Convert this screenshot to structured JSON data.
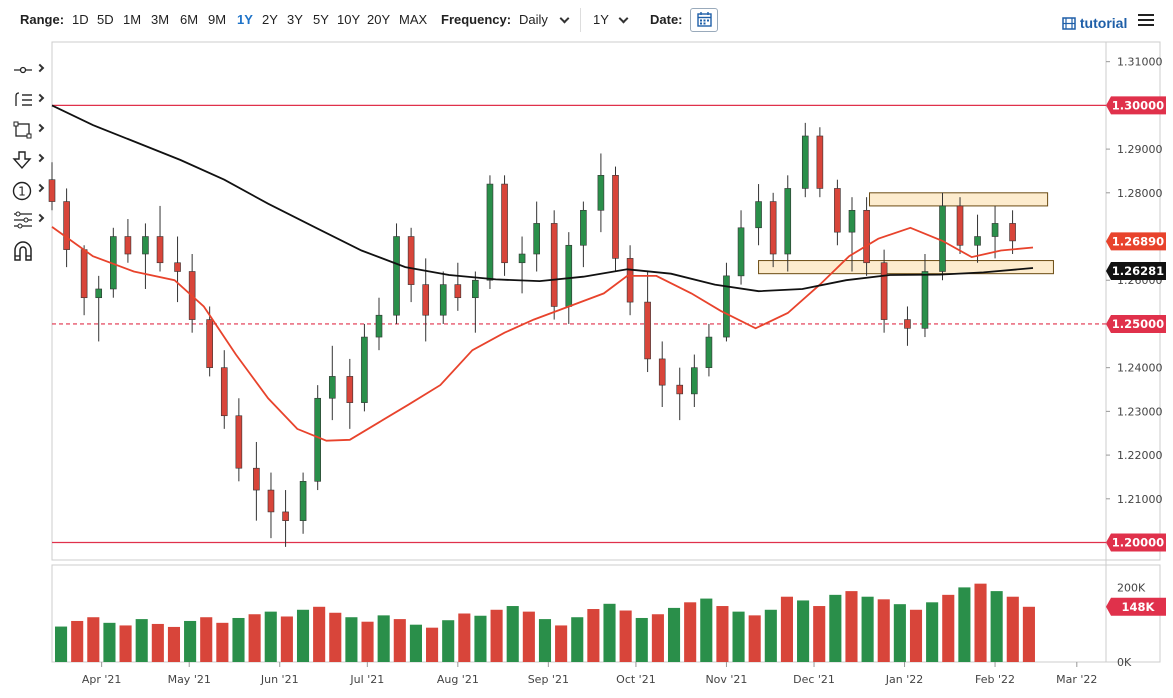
{
  "toolbar": {
    "range_label": "Range:",
    "ranges": [
      "1D",
      "5D",
      "1M",
      "3M",
      "6M",
      "9M",
      "1Y",
      "2Y",
      "3Y",
      "5Y",
      "10Y",
      "20Y",
      "MAX"
    ],
    "active_range": "1Y",
    "frequency_label": "Frequency:",
    "frequency_value": "Daily",
    "period_value": "1Y",
    "date_label": "Date:",
    "tutorial_label": "tutorial"
  },
  "tools": [
    "crosshair-tool",
    "indicator-list-tool",
    "shape-tool",
    "arrow-down-tool",
    "counter-tool",
    "drawing-layers-tool",
    "magnet-tool"
  ],
  "colors": {
    "up": "#2a8f4a",
    "down": "#d8453a",
    "sma_fast": "#e8432c",
    "sma_slow": "#111111",
    "level_line": "#e0314b",
    "zone_fill": "#fde9c5",
    "zone_stroke": "#6b4b12",
    "label_red": "#e0314b"
  },
  "chart_data": {
    "type": "candlestick",
    "x_ticks": [
      "Apr '21",
      "May '21",
      "Jun '21",
      "Jul '21",
      "Aug '21",
      "Sep '21",
      "Oct '21",
      "Nov '21",
      "Dec '21",
      "Jan '22",
      "Feb '22",
      "Mar '22"
    ],
    "y_ticks": [
      "1.31000",
      "1.29000",
      "1.28000",
      "1.26000",
      "1.24000",
      "1.23000",
      "1.22000",
      "1.21000"
    ],
    "ylim": [
      1.196,
      1.3145
    ],
    "horizontal_levels": [
      {
        "value": 1.3,
        "label": "1.30000",
        "style": "solid"
      },
      {
        "value": 1.25,
        "label": "1.25000",
        "style": "dashed"
      },
      {
        "value": 1.2,
        "label": "1.20000",
        "style": "solid"
      }
    ],
    "last_price": {
      "value": 1.2689,
      "label": "1.26890"
    },
    "sma_slow_last": {
      "value": 1.26281,
      "label": "1.26281"
    },
    "zones": [
      {
        "from_date": "2021-12-20",
        "to_date": "2022-02-19",
        "low": 1.277,
        "high": 1.28
      },
      {
        "from_date": "2021-11-12",
        "to_date": "2022-02-21",
        "low": 1.2615,
        "high": 1.2645
      }
    ],
    "sma_fast": [
      [
        "2021-03-15",
        1.2722
      ],
      [
        "2021-03-29",
        1.2655
      ],
      [
        "2021-04-12",
        1.262
      ],
      [
        "2021-04-26",
        1.26
      ],
      [
        "2021-05-06",
        1.254
      ],
      [
        "2021-05-17",
        1.243
      ],
      [
        "2021-05-28",
        1.233
      ],
      [
        "2021-06-07",
        1.226
      ],
      [
        "2021-06-17",
        1.2233
      ],
      [
        "2021-06-25",
        1.2235
      ],
      [
        "2021-07-05",
        1.2275
      ],
      [
        "2021-07-15",
        1.2315
      ],
      [
        "2021-07-26",
        1.236
      ],
      [
        "2021-08-06",
        1.244
      ],
      [
        "2021-08-17",
        1.248
      ],
      [
        "2021-08-27",
        1.251
      ],
      [
        "2021-09-08",
        1.254
      ],
      [
        "2021-09-20",
        1.257
      ],
      [
        "2021-09-28",
        1.261
      ],
      [
        "2021-10-08",
        1.261
      ],
      [
        "2021-10-20",
        1.257
      ],
      [
        "2021-10-30",
        1.253
      ],
      [
        "2021-11-11",
        1.249
      ],
      [
        "2021-11-22",
        1.2525
      ],
      [
        "2021-12-03",
        1.259
      ],
      [
        "2021-12-13",
        1.2655
      ],
      [
        "2021-12-23",
        1.2695
      ],
      [
        "2022-01-03",
        1.272
      ],
      [
        "2022-01-14",
        1.269
      ],
      [
        "2022-01-24",
        1.2653
      ],
      [
        "2022-02-03",
        1.2668
      ],
      [
        "2022-02-14",
        1.2675
      ]
    ],
    "sma_slow": [
      [
        "2021-03-15",
        1.3
      ],
      [
        "2021-03-29",
        1.2955
      ],
      [
        "2021-04-13",
        1.2915
      ],
      [
        "2021-04-28",
        1.2875
      ],
      [
        "2021-05-13",
        1.283
      ],
      [
        "2021-05-28",
        1.2775
      ],
      [
        "2021-06-14",
        1.2718
      ],
      [
        "2021-06-29",
        1.2668
      ],
      [
        "2021-07-14",
        1.263
      ],
      [
        "2021-07-29",
        1.2612
      ],
      [
        "2021-08-14",
        1.2602
      ],
      [
        "2021-08-29",
        1.2598
      ],
      [
        "2021-09-13",
        1.2608
      ],
      [
        "2021-09-28",
        1.2625
      ],
      [
        "2021-10-13",
        1.2615
      ],
      [
        "2021-10-28",
        1.259
      ],
      [
        "2021-11-12",
        1.2575
      ],
      [
        "2021-11-27",
        1.258
      ],
      [
        "2021-12-12",
        1.26
      ],
      [
        "2021-12-27",
        1.2612
      ],
      [
        "2022-01-13",
        1.2613
      ],
      [
        "2022-01-28",
        1.2618
      ],
      [
        "2022-02-14",
        1.2628
      ]
    ],
    "candles": [
      [
        "2021-03-15",
        1.283,
        1.287,
        1.276,
        1.278
      ],
      [
        "2021-03-20",
        1.278,
        1.281,
        1.263,
        1.267
      ],
      [
        "2021-03-26",
        1.267,
        1.268,
        1.252,
        1.256
      ],
      [
        "2021-03-31",
        1.256,
        1.261,
        1.246,
        1.258
      ],
      [
        "2021-04-05",
        1.258,
        1.272,
        1.256,
        1.27
      ],
      [
        "2021-04-10",
        1.27,
        1.274,
        1.264,
        1.266
      ],
      [
        "2021-04-16",
        1.266,
        1.273,
        1.258,
        1.27
      ],
      [
        "2021-04-21",
        1.27,
        1.277,
        1.262,
        1.264
      ],
      [
        "2021-04-27",
        1.264,
        1.27,
        1.255,
        1.262
      ],
      [
        "2021-05-02",
        1.262,
        1.266,
        1.248,
        1.251
      ],
      [
        "2021-05-08",
        1.251,
        1.254,
        1.238,
        1.24
      ],
      [
        "2021-05-13",
        1.24,
        1.244,
        1.226,
        1.229
      ],
      [
        "2021-05-18",
        1.229,
        1.233,
        1.214,
        1.217
      ],
      [
        "2021-05-24",
        1.217,
        1.223,
        1.205,
        1.212
      ],
      [
        "2021-05-29",
        1.212,
        1.216,
        1.201,
        1.207
      ],
      [
        "2021-06-03",
        1.207,
        1.212,
        1.199,
        1.205
      ],
      [
        "2021-06-09",
        1.205,
        1.216,
        1.202,
        1.214
      ],
      [
        "2021-06-14",
        1.214,
        1.236,
        1.212,
        1.233
      ],
      [
        "2021-06-19",
        1.233,
        1.245,
        1.228,
        1.238
      ],
      [
        "2021-06-25",
        1.238,
        1.242,
        1.226,
        1.232
      ],
      [
        "2021-06-30",
        1.232,
        1.25,
        1.23,
        1.247
      ],
      [
        "2021-07-05",
        1.247,
        1.256,
        1.244,
        1.252
      ],
      [
        "2021-07-11",
        1.252,
        1.273,
        1.25,
        1.27
      ],
      [
        "2021-07-16",
        1.27,
        1.272,
        1.255,
        1.259
      ],
      [
        "2021-07-21",
        1.259,
        1.265,
        1.246,
        1.252
      ],
      [
        "2021-07-27",
        1.252,
        1.262,
        1.25,
        1.259
      ],
      [
        "2021-08-01",
        1.259,
        1.264,
        1.253,
        1.256
      ],
      [
        "2021-08-07",
        1.256,
        1.262,
        1.248,
        1.26
      ],
      [
        "2021-08-12",
        1.26,
        1.284,
        1.258,
        1.282
      ],
      [
        "2021-08-17",
        1.282,
        1.284,
        1.261,
        1.264
      ],
      [
        "2021-08-23",
        1.264,
        1.27,
        1.257,
        1.266
      ],
      [
        "2021-08-28",
        1.266,
        1.278,
        1.262,
        1.273
      ],
      [
        "2021-09-03",
        1.273,
        1.276,
        1.251,
        1.254
      ],
      [
        "2021-09-08",
        1.254,
        1.271,
        1.25,
        1.268
      ],
      [
        "2021-09-13",
        1.268,
        1.278,
        1.263,
        1.276
      ],
      [
        "2021-09-19",
        1.276,
        1.289,
        1.271,
        1.284
      ],
      [
        "2021-09-24",
        1.284,
        1.286,
        1.262,
        1.265
      ],
      [
        "2021-09-29",
        1.265,
        1.268,
        1.252,
        1.255
      ],
      [
        "2021-10-05",
        1.255,
        1.262,
        1.239,
        1.242
      ],
      [
        "2021-10-10",
        1.242,
        1.246,
        1.231,
        1.236
      ],
      [
        "2021-10-16",
        1.236,
        1.24,
        1.228,
        1.234
      ],
      [
        "2021-10-21",
        1.234,
        1.243,
        1.231,
        1.24
      ],
      [
        "2021-10-26",
        1.24,
        1.25,
        1.238,
        1.247
      ],
      [
        "2021-11-01",
        1.247,
        1.264,
        1.246,
        1.261
      ],
      [
        "2021-11-06",
        1.261,
        1.276,
        1.259,
        1.272
      ],
      [
        "2021-11-12",
        1.272,
        1.282,
        1.268,
        1.278
      ],
      [
        "2021-11-17",
        1.278,
        1.28,
        1.263,
        1.266
      ],
      [
        "2021-11-22",
        1.266,
        1.284,
        1.262,
        1.281
      ],
      [
        "2021-11-28",
        1.281,
        1.296,
        1.279,
        1.293
      ],
      [
        "2021-12-03",
        1.293,
        1.295,
        1.279,
        1.281
      ],
      [
        "2021-12-09",
        1.281,
        1.283,
        1.268,
        1.271
      ],
      [
        "2021-12-14",
        1.271,
        1.279,
        1.262,
        1.276
      ],
      [
        "2021-12-19",
        1.276,
        1.279,
        1.261,
        1.264
      ],
      [
        "2021-12-25",
        1.264,
        1.267,
        1.248,
        1.251
      ],
      [
        "2022-01-02",
        1.251,
        1.254,
        1.245,
        1.249
      ],
      [
        "2022-01-08",
        1.249,
        1.266,
        1.247,
        1.262
      ],
      [
        "2022-01-14",
        1.262,
        1.28,
        1.26,
        1.277
      ],
      [
        "2022-01-20",
        1.277,
        1.279,
        1.266,
        1.268
      ],
      [
        "2022-01-26",
        1.268,
        1.275,
        1.264,
        1.27
      ],
      [
        "2022-02-01",
        1.27,
        1.277,
        1.265,
        1.273
      ],
      [
        "2022-02-07",
        1.273,
        1.276,
        1.266,
        1.269
      ]
    ],
    "volume_ticks": [
      "200K",
      "0K"
    ],
    "volume_last": {
      "value": 148000,
      "label": "148K"
    },
    "volume_ylim": [
      0,
      260000
    ],
    "volumes": [
      [
        95,
        "u"
      ],
      [
        110,
        "d"
      ],
      [
        120,
        "d"
      ],
      [
        105,
        "u"
      ],
      [
        98,
        "d"
      ],
      [
        115,
        "u"
      ],
      [
        102,
        "d"
      ],
      [
        94,
        "d"
      ],
      [
        110,
        "u"
      ],
      [
        120,
        "d"
      ],
      [
        105,
        "d"
      ],
      [
        118,
        "u"
      ],
      [
        128,
        "d"
      ],
      [
        135,
        "u"
      ],
      [
        122,
        "d"
      ],
      [
        140,
        "u"
      ],
      [
        148,
        "d"
      ],
      [
        132,
        "d"
      ],
      [
        120,
        "u"
      ],
      [
        108,
        "d"
      ],
      [
        125,
        "u"
      ],
      [
        115,
        "d"
      ],
      [
        100,
        "u"
      ],
      [
        92,
        "d"
      ],
      [
        112,
        "u"
      ],
      [
        130,
        "d"
      ],
      [
        124,
        "u"
      ],
      [
        140,
        "d"
      ],
      [
        150,
        "u"
      ],
      [
        135,
        "d"
      ],
      [
        115,
        "u"
      ],
      [
        98,
        "d"
      ],
      [
        120,
        "u"
      ],
      [
        142,
        "d"
      ],
      [
        156,
        "u"
      ],
      [
        138,
        "d"
      ],
      [
        118,
        "u"
      ],
      [
        128,
        "d"
      ],
      [
        145,
        "u"
      ],
      [
        160,
        "d"
      ],
      [
        170,
        "u"
      ],
      [
        150,
        "d"
      ],
      [
        135,
        "u"
      ],
      [
        125,
        "d"
      ],
      [
        140,
        "u"
      ],
      [
        175,
        "d"
      ],
      [
        165,
        "u"
      ],
      [
        150,
        "d"
      ],
      [
        180,
        "u"
      ],
      [
        190,
        "d"
      ],
      [
        175,
        "u"
      ],
      [
        168,
        "d"
      ],
      [
        155,
        "u"
      ],
      [
        140,
        "d"
      ],
      [
        160,
        "u"
      ],
      [
        180,
        "d"
      ],
      [
        200,
        "u"
      ],
      [
        210,
        "d"
      ],
      [
        190,
        "u"
      ],
      [
        175,
        "d"
      ],
      [
        148,
        "d"
      ]
    ]
  }
}
